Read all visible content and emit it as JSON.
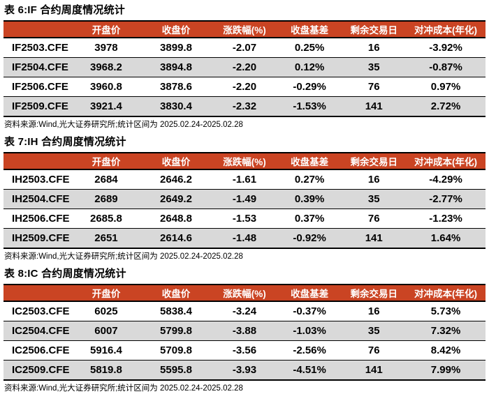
{
  "colors": {
    "header_bg": "#CA4423",
    "row_alt_bg": "#D9D9D9",
    "border": "#000000",
    "header_text": "#FFFFFF"
  },
  "columns": [
    "",
    "开盘价",
    "收盘价",
    "涨跌幅(%)",
    "收盘基差",
    "剩余交易日",
    "对冲成本(年化)"
  ],
  "source_note": "资料来源:Wind,光大证券研究所;统计区间为 2025.02.24-2025.02.28",
  "tables": [
    {
      "title": "表 6:IF 合约周度情况统计",
      "rows": [
        [
          "IF2503.CFE",
          "3978",
          "3899.8",
          "-2.07",
          "0.25%",
          "16",
          "-3.92%"
        ],
        [
          "IF2504.CFE",
          "3968.2",
          "3894.8",
          "-2.20",
          "0.12%",
          "35",
          "-0.87%"
        ],
        [
          "IF2506.CFE",
          "3960.8",
          "3878.6",
          "-2.20",
          "-0.29%",
          "76",
          "0.97%"
        ],
        [
          "IF2509.CFE",
          "3921.4",
          "3830.4",
          "-2.32",
          "-1.53%",
          "141",
          "2.72%"
        ]
      ]
    },
    {
      "title": "表 7:IH 合约周度情况统计",
      "rows": [
        [
          "IH2503.CFE",
          "2684",
          "2646.2",
          "-1.61",
          "0.27%",
          "16",
          "-4.29%"
        ],
        [
          "IH2504.CFE",
          "2689",
          "2649.2",
          "-1.49",
          "0.39%",
          "35",
          "-2.77%"
        ],
        [
          "IH2506.CFE",
          "2685.8",
          "2648.8",
          "-1.53",
          "0.37%",
          "76",
          "-1.23%"
        ],
        [
          "IH2509.CFE",
          "2651",
          "2614.6",
          "-1.48",
          "-0.92%",
          "141",
          "1.64%"
        ]
      ]
    },
    {
      "title": "表 8:IC 合约周度情况统计",
      "rows": [
        [
          "IC2503.CFE",
          "6025",
          "5838.4",
          "-3.24",
          "-0.37%",
          "16",
          "5.73%"
        ],
        [
          "IC2504.CFE",
          "6007",
          "5799.8",
          "-3.88",
          "-1.03%",
          "35",
          "7.32%"
        ],
        [
          "IC2506.CFE",
          "5916.4",
          "5709.8",
          "-3.56",
          "-2.56%",
          "76",
          "8.42%"
        ],
        [
          "IC2509.CFE",
          "5819.8",
          "5595.8",
          "-3.93",
          "-4.51%",
          "141",
          "7.99%"
        ]
      ]
    }
  ]
}
